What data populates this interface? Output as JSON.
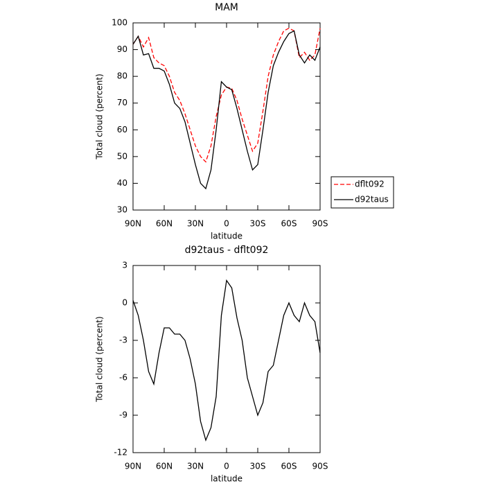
{
  "chart_data": [
    {
      "type": "line",
      "title": "MAM",
      "x_label": "latitude",
      "y_label": "Total cloud (percent)",
      "x": [
        90,
        85,
        80,
        75,
        70,
        65,
        60,
        55,
        50,
        45,
        40,
        35,
        30,
        25,
        20,
        15,
        10,
        5,
        0,
        -5,
        -10,
        -15,
        -20,
        -25,
        -30,
        -35,
        -40,
        -45,
        -50,
        -55,
        -60,
        -65,
        -70,
        -75,
        -80,
        -85,
        -90
      ],
      "series": [
        {
          "name": "dflt092",
          "color": "#ff0000",
          "style": "dashed",
          "values": [
            92,
            95,
            91,
            94.5,
            87,
            85,
            84,
            80,
            74,
            71,
            66,
            60,
            54,
            50,
            48,
            54,
            65,
            73,
            76,
            75.5,
            71,
            64,
            58,
            52,
            55,
            67,
            80,
            88,
            93,
            97,
            98,
            97,
            87,
            89,
            86,
            88,
            98
          ]
        },
        {
          "name": "d92taus",
          "color": "#000000",
          "style": "solid",
          "values": [
            92,
            95,
            88,
            88.5,
            83,
            83,
            82,
            77,
            70,
            68,
            63,
            55,
            47,
            40,
            38,
            45,
            60,
            78,
            76,
            75,
            68,
            60,
            52,
            45,
            47,
            60,
            74,
            84,
            89,
            93,
            96,
            97,
            88,
            85,
            88,
            86,
            91
          ]
        }
      ],
      "xlim": [
        90,
        -90
      ],
      "xticks": [
        {
          "value": 90,
          "label": "90N"
        },
        {
          "value": 60,
          "label": "60N"
        },
        {
          "value": 30,
          "label": "30N"
        },
        0,
        {
          "value": -30,
          "label": "30S"
        },
        {
          "value": -60,
          "label": "60S"
        },
        {
          "value": -90,
          "label": "90S"
        }
      ],
      "ylim": [
        30,
        100
      ],
      "yticks": [
        30,
        40,
        50,
        60,
        70,
        80,
        90,
        100
      ],
      "legend": "right"
    },
    {
      "type": "line",
      "title": "d92taus - dflt092",
      "x_label": "latitude",
      "y_label": "Total cloud (percent)",
      "x": [
        90,
        85,
        80,
        75,
        70,
        65,
        60,
        55,
        50,
        45,
        40,
        35,
        30,
        25,
        20,
        15,
        10,
        5,
        0,
        -5,
        -10,
        -15,
        -20,
        -25,
        -30,
        -35,
        -40,
        -45,
        -50,
        -55,
        -60,
        -65,
        -70,
        -75,
        -80,
        -85,
        -90
      ],
      "series": [
        {
          "color": "#000000",
          "style": "solid",
          "values": [
            0.2,
            -1,
            -3,
            -5.5,
            -6.5,
            -4,
            -2,
            -2,
            -2.5,
            -2.5,
            -3,
            -4.5,
            -6.5,
            -9.5,
            -11,
            -10,
            -7.5,
            -1,
            1.8,
            1.2,
            -1.2,
            -3,
            -6,
            -7.5,
            -9,
            -8,
            -5.5,
            -5,
            -3,
            -1,
            0,
            -1,
            -1.5,
            0,
            -1,
            -1.5,
            -4
          ]
        }
      ],
      "xlim": [
        90,
        -90
      ],
      "xticks": [
        {
          "value": 90,
          "label": "90N"
        },
        {
          "value": 60,
          "label": "60N"
        },
        {
          "value": 30,
          "label": "30N"
        },
        0,
        {
          "value": -30,
          "label": "30S"
        },
        {
          "value": -60,
          "label": "60S"
        },
        {
          "value": -90,
          "label": "90S"
        }
      ],
      "ylim": [
        -12,
        3
      ],
      "yticks": [
        -12,
        -9,
        -6,
        -3,
        0,
        3
      ]
    }
  ]
}
